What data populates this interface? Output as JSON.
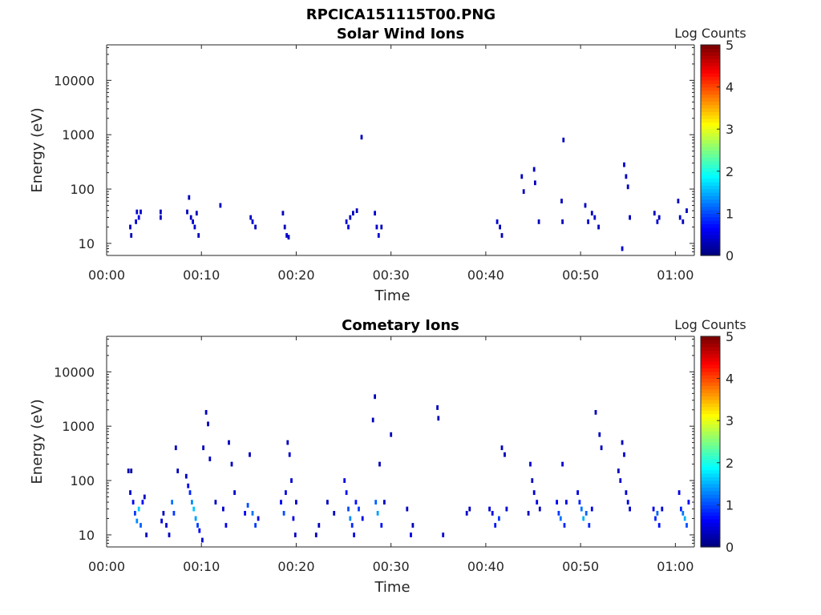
{
  "figure": {
    "title": "RPCICA151115T00.PNG",
    "background": "#ffffff"
  },
  "chart_data": [
    {
      "type": "heatmap",
      "title": "Solar Wind Ions",
      "xlabel": "Time",
      "ylabel": "Energy (eV)",
      "x_tick_labels": [
        "00:00",
        "00:10",
        "00:20",
        "00:30",
        "00:40",
        "00:50",
        "01:00"
      ],
      "x_ticks_min": [
        0,
        10,
        20,
        30,
        40,
        50,
        60
      ],
      "xlim_min": [
        0,
        62
      ],
      "y_scale": "log",
      "y_tick_labels": [
        "10",
        "100",
        "1000",
        "10000"
      ],
      "y_ticks": [
        10,
        100,
        1000,
        10000
      ],
      "ylim": [
        6,
        45000
      ],
      "colorbar": {
        "label": "Log Counts",
        "ticks": [
          "0",
          "1",
          "2",
          "3",
          "4",
          "5"
        ],
        "range": [
          0,
          5
        ],
        "colormap": "jet"
      },
      "grid": false,
      "cells": [
        [
          2.5,
          20,
          0.3
        ],
        [
          2.6,
          14,
          0.3
        ],
        [
          3.1,
          25,
          0.4
        ],
        [
          3.2,
          38,
          0.4
        ],
        [
          3.4,
          30,
          0.5
        ],
        [
          3.6,
          38,
          0.4
        ],
        [
          5.7,
          30,
          0.3
        ],
        [
          5.7,
          38,
          0.3
        ],
        [
          8.5,
          38,
          0.3
        ],
        [
          8.7,
          70,
          0.3
        ],
        [
          8.9,
          30,
          0.3
        ],
        [
          9.1,
          25,
          0.4
        ],
        [
          9.3,
          20,
          0.4
        ],
        [
          9.5,
          36,
          0.3
        ],
        [
          9.7,
          14,
          0.3
        ],
        [
          12.0,
          50,
          0.3
        ],
        [
          15.2,
          30,
          0.3
        ],
        [
          15.4,
          25,
          0.4
        ],
        [
          15.7,
          20,
          0.3
        ],
        [
          18.6,
          36,
          0.3
        ],
        [
          18.8,
          20,
          0.3
        ],
        [
          19.0,
          14,
          0.4
        ],
        [
          19.2,
          13,
          0.3
        ],
        [
          25.3,
          25,
          0.4
        ],
        [
          25.5,
          20,
          0.5
        ],
        [
          25.7,
          30,
          0.3
        ],
        [
          26.0,
          36,
          0.3
        ],
        [
          26.4,
          40,
          0.3
        ],
        [
          26.9,
          900,
          0.3
        ],
        [
          28.3,
          36,
          0.4
        ],
        [
          28.5,
          20,
          0.4
        ],
        [
          28.7,
          14,
          0.4
        ],
        [
          29.0,
          20,
          0.3
        ],
        [
          41.2,
          25,
          0.4
        ],
        [
          41.5,
          20,
          0.3
        ],
        [
          41.7,
          14,
          0.3
        ],
        [
          43.8,
          170,
          0.3
        ],
        [
          44.0,
          90,
          0.3
        ],
        [
          45.1,
          230,
          0.3
        ],
        [
          45.2,
          130,
          0.3
        ],
        [
          45.6,
          25,
          0.3
        ],
        [
          48.0,
          60,
          0.3
        ],
        [
          48.1,
          25,
          0.3
        ],
        [
          48.2,
          800,
          0.3
        ],
        [
          50.5,
          50,
          0.3
        ],
        [
          50.8,
          25,
          0.4
        ],
        [
          51.2,
          36,
          0.3
        ],
        [
          51.5,
          30,
          0.4
        ],
        [
          51.9,
          20,
          0.3
        ],
        [
          54.4,
          8,
          0.4
        ],
        [
          54.6,
          280,
          0.4
        ],
        [
          54.8,
          170,
          0.3
        ],
        [
          55.0,
          110,
          0.3
        ],
        [
          55.2,
          30,
          0.3
        ],
        [
          57.8,
          36,
          0.3
        ],
        [
          58.1,
          25,
          0.4
        ],
        [
          58.3,
          30,
          0.3
        ],
        [
          60.3,
          60,
          0.3
        ],
        [
          60.5,
          30,
          0.4
        ],
        [
          60.8,
          25,
          0.3
        ],
        [
          61.2,
          40,
          0.3
        ]
      ]
    },
    {
      "type": "heatmap",
      "title": "Cometary Ions",
      "xlabel": "Time",
      "ylabel": "Energy (eV)",
      "x_tick_labels": [
        "00:00",
        "00:10",
        "00:20",
        "00:30",
        "00:40",
        "00:50",
        "01:00"
      ],
      "x_ticks_min": [
        0,
        10,
        20,
        30,
        40,
        50,
        60
      ],
      "xlim_min": [
        0,
        62
      ],
      "y_scale": "log",
      "y_tick_labels": [
        "10",
        "100",
        "1000",
        "10000"
      ],
      "y_ticks": [
        10,
        100,
        1000,
        10000
      ],
      "ylim": [
        6,
        45000
      ],
      "colorbar": {
        "label": "Log Counts",
        "ticks": [
          "0",
          "1",
          "2",
          "3",
          "4",
          "5"
        ],
        "range": [
          0,
          5
        ],
        "colormap": "jet"
      },
      "grid": false,
      "cells": [
        [
          2.3,
          150,
          0.2
        ],
        [
          2.6,
          150,
          0.2
        ],
        [
          2.5,
          60,
          0.4
        ],
        [
          2.8,
          40,
          0.6
        ],
        [
          3.0,
          25,
          0.9
        ],
        [
          3.2,
          18,
          1.3
        ],
        [
          3.4,
          30,
          1.6
        ],
        [
          3.6,
          15,
          1.1
        ],
        [
          3.8,
          40,
          0.7
        ],
        [
          4.0,
          50,
          0.3
        ],
        [
          4.2,
          10,
          0.3
        ],
        [
          5.8,
          18,
          0.4
        ],
        [
          6.0,
          25,
          0.3
        ],
        [
          6.3,
          15,
          0.4
        ],
        [
          6.6,
          10,
          0.3
        ],
        [
          6.9,
          40,
          1.2
        ],
        [
          7.1,
          25,
          0.9
        ],
        [
          7.3,
          400,
          0.3
        ],
        [
          7.5,
          150,
          0.3
        ],
        [
          8.4,
          120,
          0.3
        ],
        [
          8.6,
          80,
          0.5
        ],
        [
          8.8,
          60,
          0.8
        ],
        [
          9.0,
          40,
          1.3
        ],
        [
          9.2,
          30,
          1.6
        ],
        [
          9.4,
          20,
          1.4
        ],
        [
          9.6,
          15,
          0.9
        ],
        [
          9.8,
          12,
          0.6
        ],
        [
          10.1,
          8,
          0.4
        ],
        [
          10.2,
          400,
          0.3
        ],
        [
          10.5,
          1800,
          0.3
        ],
        [
          10.7,
          1100,
          0.3
        ],
        [
          10.9,
          250,
          0.3
        ],
        [
          11.5,
          40,
          0.3
        ],
        [
          12.3,
          30,
          0.4
        ],
        [
          12.6,
          15,
          0.5
        ],
        [
          12.9,
          500,
          0.3
        ],
        [
          13.2,
          200,
          0.3
        ],
        [
          13.5,
          60,
          0.4
        ],
        [
          14.6,
          25,
          0.6
        ],
        [
          14.9,
          35,
          1.0
        ],
        [
          15.1,
          300,
          0.3
        ],
        [
          15.4,
          25,
          1.2
        ],
        [
          15.7,
          15,
          0.9
        ],
        [
          16.0,
          20,
          0.5
        ],
        [
          18.4,
          40,
          0.6
        ],
        [
          18.7,
          25,
          1.0
        ],
        [
          18.9,
          60,
          0.5
        ],
        [
          19.1,
          500,
          0.3
        ],
        [
          19.3,
          300,
          0.4
        ],
        [
          19.5,
          100,
          0.4
        ],
        [
          19.7,
          20,
          0.5
        ],
        [
          19.9,
          10,
          0.3
        ],
        [
          20.0,
          40,
          0.4
        ],
        [
          22.1,
          10,
          0.3
        ],
        [
          22.4,
          15,
          0.3
        ],
        [
          23.3,
          40,
          0.3
        ],
        [
          24.0,
          25,
          0.3
        ],
        [
          25.1,
          100,
          0.5
        ],
        [
          25.3,
          60,
          0.7
        ],
        [
          25.5,
          30,
          1.0
        ],
        [
          25.7,
          20,
          1.3
        ],
        [
          25.9,
          15,
          0.8
        ],
        [
          26.1,
          10,
          0.5
        ],
        [
          26.3,
          40,
          0.7
        ],
        [
          26.6,
          30,
          0.9
        ],
        [
          27.0,
          20,
          0.5
        ],
        [
          28.1,
          1300,
          0.3
        ],
        [
          28.3,
          3500,
          0.3
        ],
        [
          28.4,
          40,
          1.1
        ],
        [
          28.6,
          25,
          1.4
        ],
        [
          28.8,
          200,
          0.3
        ],
        [
          29.0,
          15,
          0.7
        ],
        [
          29.3,
          40,
          0.3
        ],
        [
          30.0,
          700,
          0.3
        ],
        [
          31.7,
          30,
          0.3
        ],
        [
          32.1,
          10,
          0.5
        ],
        [
          32.3,
          15,
          0.3
        ],
        [
          34.9,
          2200,
          0.3
        ],
        [
          35.0,
          1400,
          0.3
        ],
        [
          35.5,
          10,
          0.4
        ],
        [
          38.0,
          25,
          0.4
        ],
        [
          38.3,
          30,
          0.3
        ],
        [
          40.4,
          30,
          0.4
        ],
        [
          40.7,
          25,
          0.5
        ],
        [
          41.0,
          15,
          0.7
        ],
        [
          41.4,
          20,
          0.9
        ],
        [
          41.7,
          400,
          0.3
        ],
        [
          42.0,
          300,
          0.3
        ],
        [
          42.2,
          30,
          0.4
        ],
        [
          44.5,
          25,
          0.3
        ],
        [
          44.7,
          200,
          0.4
        ],
        [
          44.9,
          100,
          0.3
        ],
        [
          45.1,
          60,
          0.4
        ],
        [
          45.4,
          40,
          0.5
        ],
        [
          45.7,
          30,
          0.3
        ],
        [
          47.5,
          40,
          0.6
        ],
        [
          47.7,
          25,
          0.9
        ],
        [
          47.9,
          20,
          1.2
        ],
        [
          48.1,
          200,
          0.4
        ],
        [
          48.3,
          15,
          0.8
        ],
        [
          48.5,
          40,
          0.5
        ],
        [
          49.7,
          60,
          0.5
        ],
        [
          49.9,
          40,
          0.8
        ],
        [
          50.1,
          30,
          1.2
        ],
        [
          50.3,
          20,
          1.5
        ],
        [
          50.6,
          25,
          1.1
        ],
        [
          50.9,
          15,
          0.8
        ],
        [
          51.2,
          30,
          0.5
        ],
        [
          51.6,
          1800,
          0.3
        ],
        [
          52.0,
          700,
          0.3
        ],
        [
          52.2,
          400,
          0.3
        ],
        [
          54.0,
          150,
          0.3
        ],
        [
          54.2,
          100,
          0.4
        ],
        [
          54.4,
          500,
          0.3
        ],
        [
          54.6,
          300,
          0.4
        ],
        [
          54.8,
          60,
          0.4
        ],
        [
          55.0,
          40,
          0.5
        ],
        [
          55.2,
          30,
          0.4
        ],
        [
          57.7,
          30,
          0.5
        ],
        [
          57.9,
          20,
          0.8
        ],
        [
          58.1,
          25,
          1.1
        ],
        [
          58.3,
          15,
          0.7
        ],
        [
          58.6,
          30,
          0.4
        ],
        [
          60.4,
          60,
          0.5
        ],
        [
          60.6,
          30,
          0.8
        ],
        [
          60.8,
          25,
          1.2
        ],
        [
          61.0,
          20,
          1.5
        ],
        [
          61.2,
          15,
          1.0
        ],
        [
          61.4,
          40,
          0.6
        ]
      ]
    }
  ]
}
